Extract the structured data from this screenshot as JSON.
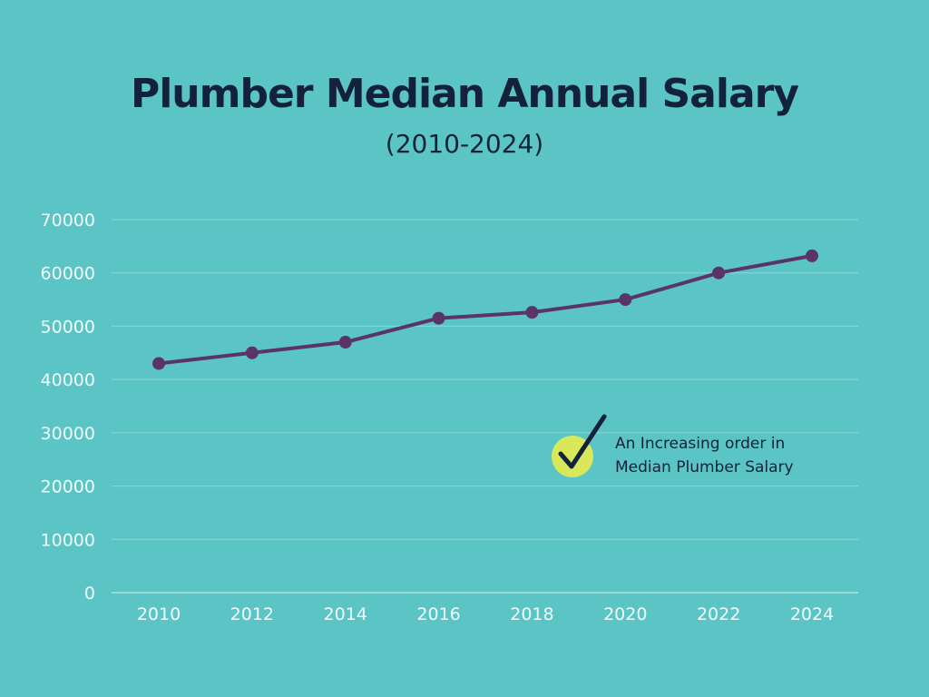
{
  "chart_data": {
    "type": "line",
    "title": "Plumber Median Annual Salary",
    "subtitle": "(2010-2024)",
    "xlabel": "",
    "ylabel": "",
    "categories": [
      "2010",
      "2012",
      "2014",
      "2016",
      "2018",
      "2020",
      "2022",
      "2024"
    ],
    "values": [
      43000,
      45000,
      47000,
      51500,
      52600,
      55000,
      60000,
      63200
    ],
    "ylim": [
      0,
      70000
    ],
    "yticks": [
      0,
      10000,
      20000,
      30000,
      40000,
      50000,
      60000,
      70000
    ],
    "grid": true,
    "annotation": {
      "line1": "An Increasing order in",
      "line2": "Median Plumber Salary",
      "icon": "check-icon"
    },
    "colors": {
      "background": "#5bc5c6",
      "line": "#5a3466",
      "grid": "#8ad9d9",
      "check_circle": "#d8e85a",
      "title": "#14213a"
    }
  }
}
